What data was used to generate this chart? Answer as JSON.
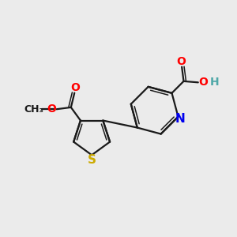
{
  "background_color": "#ebebeb",
  "bond_color": "#1a1a1a",
  "atom_colors": {
    "N": "#0000ee",
    "O": "#ff0000",
    "S": "#ccaa00",
    "H": "#4fa8a8",
    "C": "#1a1a1a"
  },
  "figsize": [
    3.0,
    3.0
  ],
  "dpi": 100
}
